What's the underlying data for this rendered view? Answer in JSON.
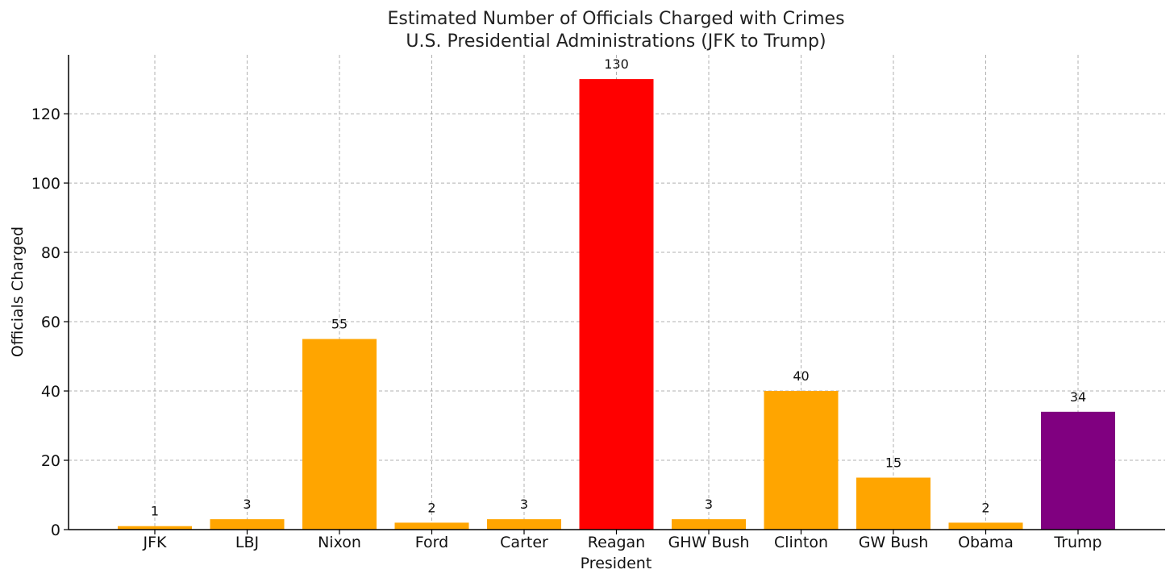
{
  "chart_data": {
    "type": "bar",
    "title": "Estimated Number of Officials Charged with Crimes",
    "subtitle": "U.S. Presidential Administrations (JFK to Trump)",
    "xlabel": "President",
    "ylabel": "Officials Charged",
    "categories": [
      "JFK",
      "LBJ",
      "Nixon",
      "Ford",
      "Carter",
      "Reagan",
      "GHW Bush",
      "Clinton",
      "GW Bush",
      "Obama",
      "Trump"
    ],
    "values": [
      1,
      3,
      55,
      2,
      3,
      130,
      3,
      40,
      15,
      2,
      34
    ],
    "colors": [
      "#FFA500",
      "#FFA500",
      "#FFA500",
      "#FFA500",
      "#FFA500",
      "#FF0000",
      "#FFA500",
      "#FFA500",
      "#FFA500",
      "#FFA500",
      "#800080"
    ],
    "y_ticks": [
      0,
      20,
      40,
      60,
      80,
      100,
      120
    ],
    "ylim": [
      0,
      137
    ],
    "grid": true,
    "data_labels": true
  }
}
